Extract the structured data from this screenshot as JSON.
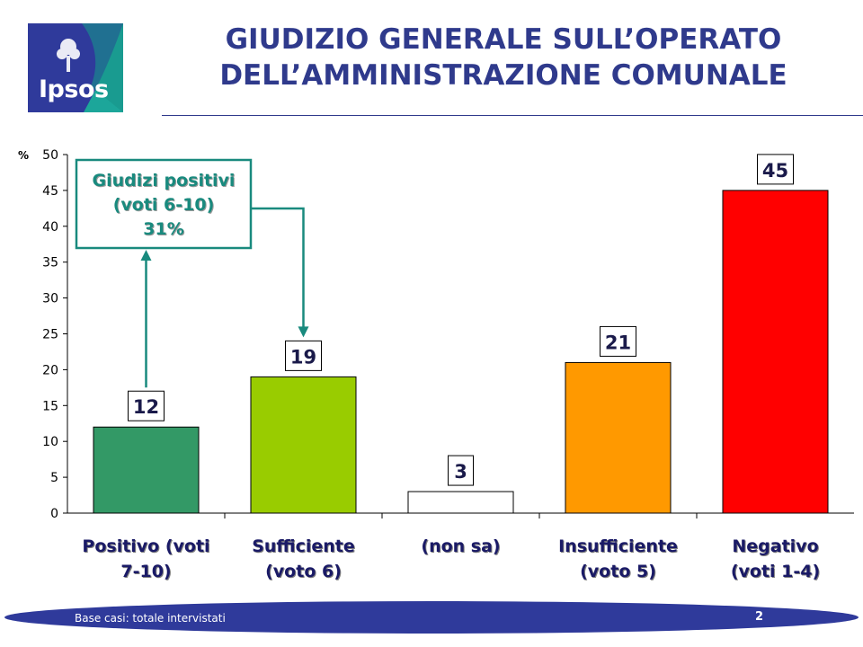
{
  "brand": {
    "logo_text": "Ipsos",
    "logo_color": "#2f3a9b",
    "accent_color": "#1ca69a"
  },
  "header": {
    "title_line1": "GIUDIZIO GENERALE SULL’OPERATO",
    "title_line2": "DELL’AMMINISTRAZIONE COMUNALE",
    "title_color": "#2f3a8c"
  },
  "chart_data": {
    "type": "bar",
    "ylabel": "%",
    "ylim": [
      0,
      50
    ],
    "yticks": [
      0,
      5,
      10,
      15,
      20,
      25,
      30,
      35,
      40,
      45,
      50
    ],
    "grid": false,
    "categories": [
      [
        "Positivo (voti",
        "7-10)"
      ],
      [
        "Sufficiente",
        "(voto 6)"
      ],
      [
        "(non sa)"
      ],
      [
        "Insufficiente",
        "(voto 5)"
      ],
      [
        "Negativo",
        "(voti 1-4)"
      ]
    ],
    "values": [
      12,
      19,
      3,
      21,
      45
    ],
    "data_labels": [
      "12",
      "19",
      "3",
      "21",
      "45"
    ],
    "colors": [
      "#339966",
      "#99cc00",
      "#ffffff",
      "#ff9900",
      "#ff0000"
    ],
    "annotation": {
      "lines": [
        "Giudizi positivi",
        "(voti 6-10)",
        "31%"
      ],
      "color": "#198a7e",
      "arrow_targets": [
        0,
        1
      ]
    }
  },
  "footer": {
    "base_text": "Base casi: totale intervistati",
    "page_number": "2"
  }
}
